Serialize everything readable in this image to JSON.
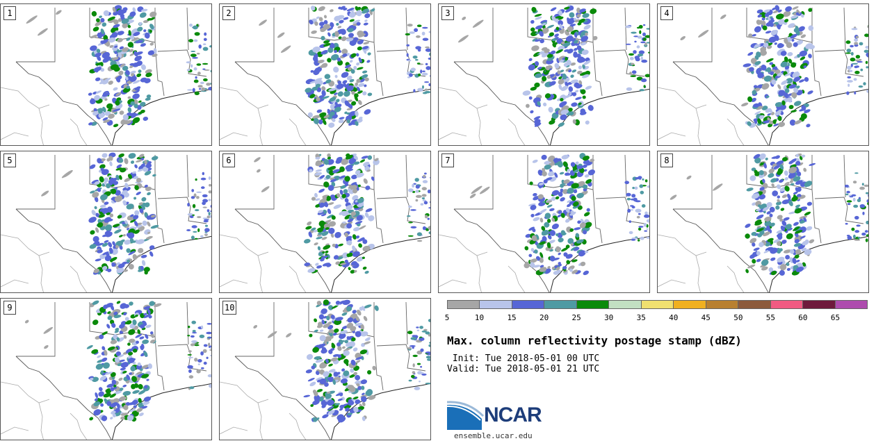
{
  "panels": [
    {
      "label": "1"
    },
    {
      "label": "2"
    },
    {
      "label": "3"
    },
    {
      "label": "4"
    },
    {
      "label": "5"
    },
    {
      "label": "6"
    },
    {
      "label": "7"
    },
    {
      "label": "8"
    },
    {
      "label": "9"
    },
    {
      "label": "10"
    }
  ],
  "colorbar": {
    "colors": [
      "#a6a6a6",
      "#b8c4ea",
      "#5766d6",
      "#4f9aa3",
      "#0a8a0a",
      "#c2e0c2",
      "#f0e070",
      "#f0b020",
      "#b88030",
      "#8c5a3c",
      "#f05a82",
      "#6e1a3c",
      "#ae4cae"
    ],
    "ticks": [
      "5",
      "10",
      "15",
      "20",
      "25",
      "30",
      "35",
      "40",
      "45",
      "50",
      "55",
      "60",
      "65"
    ]
  },
  "title": "Max. column reflectivity postage stamp (dBZ)",
  "init": " Init: Tue 2018-05-01 00 UTC",
  "valid": "Valid: Tue 2018-05-01 21 UTC",
  "logo": {
    "text": "NCAR"
  },
  "site": "ensemble.ucar.edu"
}
